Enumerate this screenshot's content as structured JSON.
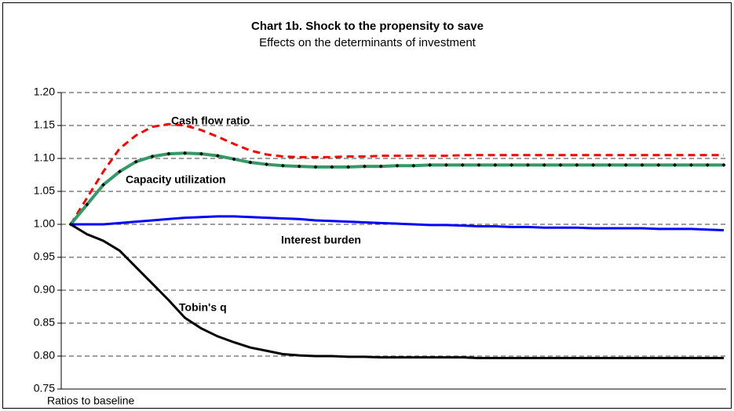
{
  "chart_data": {
    "type": "line",
    "title": "Chart 1b. Shock to the propensity to save",
    "subtitle": "Effects on the determinants of investment",
    "y_axis_label": "Ratios to baseline",
    "categories": [
      null,
      null,
      null,
      null,
      null,
      null,
      null,
      null,
      null,
      null,
      null,
      null,
      null,
      null,
      null,
      null,
      null,
      null,
      null,
      null,
      null,
      null,
      null,
      null,
      null,
      null,
      null,
      null,
      null,
      null,
      null,
      null,
      null,
      null,
      null,
      null,
      null,
      null,
      null,
      null,
      null
    ],
    "ylim": [
      0.75,
      1.2
    ],
    "yticks": [
      {
        "value": 0.75,
        "label": "0.75"
      },
      {
        "value": 0.8,
        "label": "0.80"
      },
      {
        "value": 0.85,
        "label": "0.85"
      },
      {
        "value": 0.9,
        "label": "0.90"
      },
      {
        "value": 0.95,
        "label": "0.95"
      },
      {
        "value": 1,
        "label": "1.00"
      },
      {
        "value": 1.05,
        "label": "1.05"
      },
      {
        "value": 1.1,
        "label": "1.10"
      },
      {
        "value": 1.15,
        "label": "1.15"
      },
      {
        "value": 1.2,
        "label": "1.20"
      }
    ],
    "grid": true,
    "series": [
      {
        "name": "Cash flow ratio",
        "color": "#ff0000",
        "line_style": "dashed",
        "markers": false,
        "values": [
          1.0,
          1.04,
          1.08,
          1.115,
          1.135,
          1.148,
          1.152,
          1.15,
          1.143,
          1.133,
          1.122,
          1.112,
          1.106,
          1.103,
          1.102,
          1.102,
          1.102,
          1.103,
          1.103,
          1.104,
          1.104,
          1.104,
          1.104,
          1.104,
          1.105,
          1.105,
          1.105,
          1.105,
          1.105,
          1.105,
          1.105,
          1.105,
          1.105,
          1.105,
          1.105,
          1.105,
          1.105,
          1.105,
          1.105,
          1.105,
          1.105
        ]
      },
      {
        "name": "Capacity utilization",
        "color": "#339966",
        "line_style": "solid",
        "markers": true,
        "values": [
          1.0,
          1.03,
          1.06,
          1.08,
          1.095,
          1.103,
          1.107,
          1.108,
          1.107,
          1.104,
          1.099,
          1.094,
          1.091,
          1.089,
          1.088,
          1.087,
          1.087,
          1.087,
          1.088,
          1.088,
          1.089,
          1.089,
          1.09,
          1.09,
          1.09,
          1.09,
          1.09,
          1.09,
          1.09,
          1.09,
          1.09,
          1.09,
          1.09,
          1.09,
          1.09,
          1.09,
          1.09,
          1.09,
          1.09,
          1.09,
          1.09
        ]
      },
      {
        "name": "Interest burden",
        "color": "#0000ff",
        "line_style": "solid",
        "markers": false,
        "values": [
          1.0,
          1.0,
          1.0,
          1.002,
          1.004,
          1.006,
          1.008,
          1.01,
          1.011,
          1.012,
          1.012,
          1.011,
          1.01,
          1.009,
          1.008,
          1.006,
          1.005,
          1.004,
          1.003,
          1.002,
          1.001,
          1.0,
          0.999,
          0.999,
          0.998,
          0.997,
          0.997,
          0.996,
          0.996,
          0.995,
          0.995,
          0.995,
          0.994,
          0.994,
          0.994,
          0.994,
          0.993,
          0.993,
          0.993,
          0.992,
          0.991
        ]
      },
      {
        "name": "Tobin's q",
        "color": "#000000",
        "line_style": "solid",
        "markers": false,
        "values": [
          1.0,
          0.985,
          0.975,
          0.96,
          0.935,
          0.91,
          0.885,
          0.858,
          0.842,
          0.83,
          0.821,
          0.813,
          0.808,
          0.803,
          0.801,
          0.8,
          0.8,
          0.799,
          0.799,
          0.798,
          0.798,
          0.798,
          0.798,
          0.798,
          0.798,
          0.797,
          0.797,
          0.797,
          0.797,
          0.797,
          0.797,
          0.797,
          0.797,
          0.797,
          0.797,
          0.797,
          0.797,
          0.797,
          0.797,
          0.797,
          0.797
        ]
      }
    ]
  }
}
